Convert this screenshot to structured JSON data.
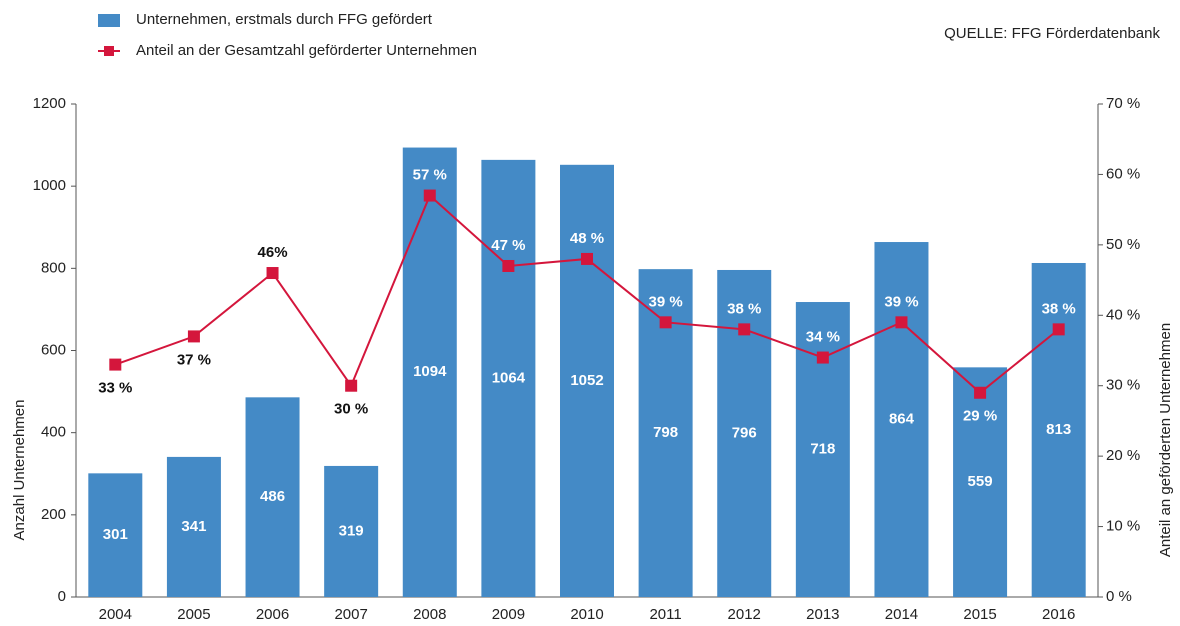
{
  "chart_data": {
    "type": "bar-line",
    "source": "QUELLE: FFG Förderdatenbank",
    "y_label": "Anzahl Unternehmen",
    "y2_label": "Anteil an geförderten Unternehmen",
    "categories": [
      "2004",
      "2005",
      "2006",
      "2007",
      "2008",
      "2009",
      "2010",
      "2011",
      "2012",
      "2013",
      "2014",
      "2015",
      "2016"
    ],
    "series": [
      {
        "name": "Unternehmen, erstmals durch FFG gefördert",
        "type": "bar",
        "color": "#448ac6",
        "values": [
          301,
          341,
          486,
          319,
          1094,
          1064,
          1052,
          798,
          796,
          718,
          864,
          559,
          813
        ]
      },
      {
        "name": "Anteil an der Gesamtzahl geförderter Unternehmen",
        "type": "line",
        "axis": "y2",
        "color": "#d4163c",
        "values": [
          33,
          37,
          46,
          30,
          57,
          47,
          48,
          39,
          38,
          34,
          39,
          29,
          38
        ],
        "value_labels": [
          "33 %",
          "37 %",
          "46%",
          "30 %",
          "57 %",
          "47 %",
          "48 %",
          "39 %",
          "38 %",
          "34 %",
          "39 %",
          "29 %",
          "38 %"
        ]
      }
    ],
    "ylim": [
      0,
      1200
    ],
    "yticks": [
      0,
      200,
      400,
      600,
      800,
      1000,
      1200
    ],
    "y2lim": [
      0,
      70
    ],
    "y2ticks": [
      {
        "value": 0,
        "label": "0 %"
      },
      {
        "value": 10,
        "label": "10 %"
      },
      {
        "value": 20,
        "label": "20 %"
      },
      {
        "value": 30,
        "label": "30 %"
      },
      {
        "value": 40,
        "label": "40 %"
      },
      {
        "value": 50,
        "label": "50 %"
      },
      {
        "value": 60,
        "label": "60 %"
      },
      {
        "value": 70,
        "label": "70 %"
      }
    ]
  }
}
